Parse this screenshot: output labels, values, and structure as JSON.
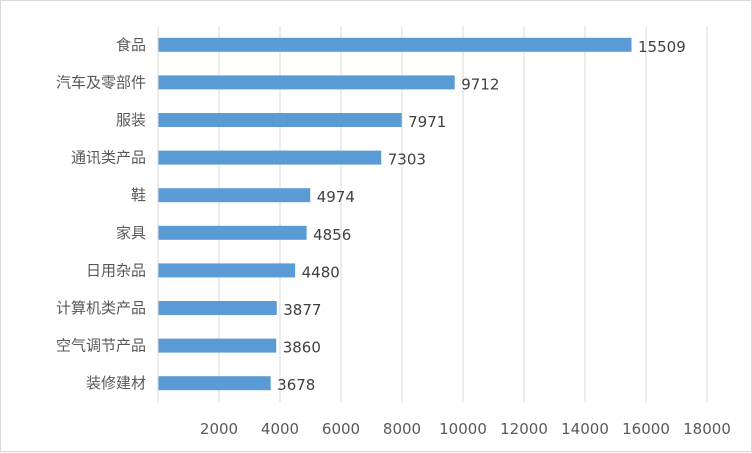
{
  "chart_data": {
    "type": "bar",
    "orientation": "horizontal",
    "categories": [
      "食品",
      "汽车及零部件",
      "服装",
      "通讯类产品",
      "鞋",
      "家具",
      "日用杂品",
      "计算机类产品",
      "空气调节产品",
      "装修建材"
    ],
    "values": [
      15509,
      9712,
      7971,
      7303,
      4974,
      4856,
      4480,
      3877,
      3860,
      3678
    ],
    "x_ticks": [
      2000,
      4000,
      6000,
      8000,
      10000,
      12000,
      14000,
      16000,
      18000
    ],
    "xlim": [
      0,
      18000
    ],
    "title": "",
    "xlabel": "",
    "ylabel": "",
    "grid": "vertical",
    "legend": "none",
    "data_labels": true,
    "bar_color": "#5b9bd5",
    "grid_color": "#d9d9d9",
    "text_color": "#595959"
  }
}
